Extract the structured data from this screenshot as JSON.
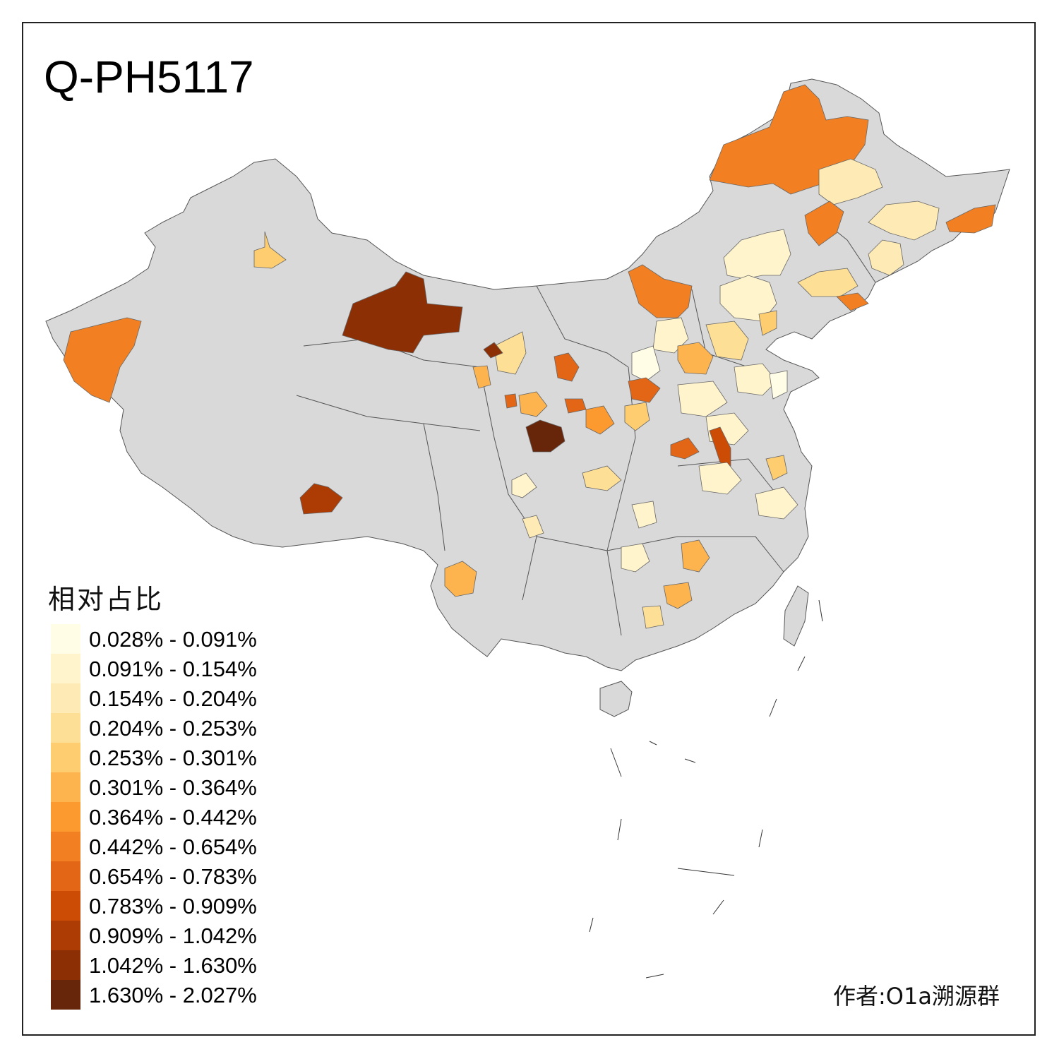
{
  "title": "Q-PH5117",
  "legend": {
    "title": "相对占比",
    "classes": [
      {
        "label": "0.028% - 0.091%",
        "color": "#fffde6"
      },
      {
        "label": "0.091% - 0.154%",
        "color": "#fff4cc"
      },
      {
        "label": "0.154% - 0.204%",
        "color": "#feeab4"
      },
      {
        "label": "0.204% - 0.253%",
        "color": "#fedf96"
      },
      {
        "label": "0.253% - 0.301%",
        "color": "#fecd70"
      },
      {
        "label": "0.301% - 0.364%",
        "color": "#feb44e"
      },
      {
        "label": "0.364% - 0.442%",
        "color": "#fc9a30"
      },
      {
        "label": "0.442% - 0.654%",
        "color": "#f28022"
      },
      {
        "label": "0.654% - 0.783%",
        "color": "#e36616"
      },
      {
        "label": "0.783% - 0.909%",
        "color": "#cc4c06"
      },
      {
        "label": "0.909% - 1.042%",
        "color": "#ad3c04"
      },
      {
        "label": "1.042% - 1.630%",
        "color": "#8c2f04"
      },
      {
        "label": "1.630% - 2.027%",
        "color": "#67260a"
      }
    ]
  },
  "credit": "作者:O1a溯源群",
  "colors": {
    "land": "#d9d9d9",
    "border": "#333333",
    "frame": "#222222"
  }
}
